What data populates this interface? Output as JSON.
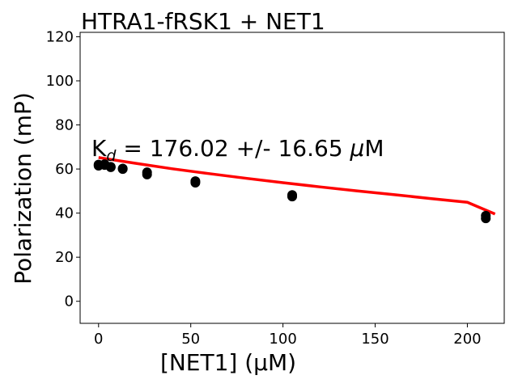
{
  "chart_data": {
    "type": "scatter",
    "title": "HTRA1-fRSK1 + NET1",
    "xlabel": "[NET1] (μM)",
    "ylabel": "Polarization (mP)",
    "xlim": [
      -10,
      220
    ],
    "ylim": [
      -10,
      122
    ],
    "x_ticks": [
      0,
      50,
      100,
      150,
      200
    ],
    "y_ticks": [
      0,
      20,
      40,
      60,
      80,
      100,
      120
    ],
    "grid": false,
    "annotation": {
      "k_symbol": "K",
      "k_subscript": "d",
      "text": " = 176.02 +/- 16.65 ",
      "mu": "μ",
      "unit": "M"
    },
    "series": [
      {
        "kind": "scatter",
        "color": "#000000",
        "points": [
          {
            "x": 0,
            "y": 61.5
          },
          {
            "x": 0,
            "y": 62
          },
          {
            "x": 3.3,
            "y": 61.8
          },
          {
            "x": 3.3,
            "y": 62.2
          },
          {
            "x": 6.6,
            "y": 61
          },
          {
            "x": 6.6,
            "y": 60.8
          },
          {
            "x": 13.1,
            "y": 60.2
          },
          {
            "x": 13.1,
            "y": 60
          },
          {
            "x": 26.3,
            "y": 58.5
          },
          {
            "x": 26.3,
            "y": 57.5
          },
          {
            "x": 52.5,
            "y": 54.5
          },
          {
            "x": 52.5,
            "y": 53.8
          },
          {
            "x": 105,
            "y": 48.2
          },
          {
            "x": 105,
            "y": 47.5
          },
          {
            "x": 210,
            "y": 38.8
          },
          {
            "x": 210,
            "y": 37.6
          }
        ]
      },
      {
        "kind": "fit",
        "color": "#ff0000",
        "x": [
          0,
          20,
          40,
          60,
          80,
          100,
          120,
          140,
          160,
          180,
          200,
          215
        ],
        "y": [
          65.2,
          62.6,
          60.1,
          57.9,
          55.8,
          53.8,
          51.9,
          50.1,
          48.4,
          46.6,
          44.9,
          39.6
        ]
      }
    ]
  }
}
